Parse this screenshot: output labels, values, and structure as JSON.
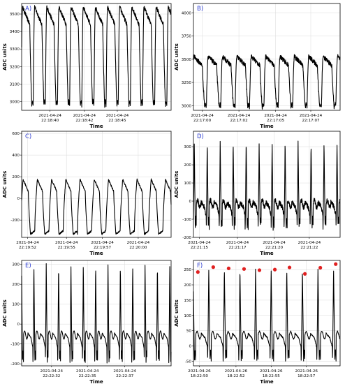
{
  "chart_data": [
    {
      "type": "line",
      "panel_label": "A)",
      "ylabel": "ADC units",
      "xlabel": "Time",
      "ylim": [
        2950,
        3560
      ],
      "yticks": [
        3000,
        3100,
        3200,
        3300,
        3400,
        3500
      ],
      "x_tick_labels": [
        [
          "2021-04-24",
          "22:18:40"
        ],
        [
          "2021-04-24",
          "22:18:42"
        ],
        [
          "2021-04-24",
          "22:18:45"
        ]
      ],
      "x_tick_fractions": [
        0.19,
        0.42,
        0.64
      ],
      "grid": true,
      "waveform": {
        "cycles": 12.3,
        "phase": 0.05,
        "low": 2975,
        "high": 3540,
        "shape": "sawtooth-slow-fall",
        "noise": 12
      },
      "markers": []
    },
    {
      "type": "line",
      "panel_label": "B)",
      "ylabel": "ADC units",
      "xlabel": "Time",
      "ylim": [
        2950,
        4100
      ],
      "yticks": [
        3000,
        3250,
        3500,
        3750,
        4000
      ],
      "x_tick_labels": [
        [
          "2021-04-24",
          "22:17:00"
        ],
        [
          "2021-04-24",
          "22:17:02"
        ],
        [
          "2021-04-24",
          "22:17:05"
        ],
        [
          "2021-04-24",
          "22:17:07"
        ]
      ],
      "x_tick_fractions": [
        0.06,
        0.31,
        0.56,
        0.8
      ],
      "grid": true,
      "waveform": {
        "cycles": 10.2,
        "phase": 0.1,
        "low": 2985,
        "high": 3530,
        "shape": "sawtooth-slow-fall",
        "noise": 25
      },
      "markers": []
    },
    {
      "type": "line",
      "panel_label": "C)",
      "ylabel": "ADC units",
      "xlabel": "Time",
      "ylim": [
        -360,
        620
      ],
      "yticks": [
        -200,
        0,
        200,
        400,
        600
      ],
      "x_tick_labels": [
        [
          "2021-04-24",
          "22:19:52"
        ],
        [
          "2021-04-24",
          "22:19:55"
        ],
        [
          "2021-04-24",
          "22:19:57"
        ],
        [
          "2021-04-24",
          "22:20:00"
        ]
      ],
      "x_tick_fractions": [
        0.04,
        0.3,
        0.54,
        0.78
      ],
      "grid": true,
      "waveform": {
        "cycles": 10.5,
        "phase": 0.08,
        "low": -330,
        "high": 175,
        "shape": "plateau",
        "noise": 8
      },
      "markers": []
    },
    {
      "type": "line",
      "panel_label": "D)",
      "ylabel": "ADC units",
      "xlabel": "Time",
      "ylim": [
        -200,
        385
      ],
      "yticks": [
        -200,
        -100,
        0,
        100,
        200,
        300
      ],
      "x_tick_labels": [
        [
          "2021-04-24",
          "22:21:15"
        ],
        [
          "2021-04-24",
          "22:21:17"
        ],
        [
          "2021-04-24",
          "22:21:20"
        ],
        [
          "2021-04-24",
          "22:21:22"
        ]
      ],
      "x_tick_fractions": [
        0.04,
        0.3,
        0.55,
        0.79
      ],
      "grid": true,
      "waveform": {
        "cycles": 11.3,
        "phase": 0.02,
        "low": -150,
        "high": 330,
        "shape": "spike",
        "noise": 14
      },
      "markers": []
    },
    {
      "type": "line",
      "panel_label": "E)",
      "ylabel": "ADC units",
      "xlabel": "Time",
      "ylim": [
        -210,
        320
      ],
      "yticks": [
        -200,
        -100,
        0,
        100,
        200,
        300
      ],
      "x_tick_labels": [
        [
          "2021-04-24",
          "22:22:32"
        ],
        [
          "2021-04-24",
          "22:22:35"
        ],
        [
          "2021-04-24",
          "22:22:37"
        ]
      ],
      "x_tick_fractions": [
        0.2,
        0.44,
        0.69
      ],
      "grid": true,
      "waveform": {
        "cycles": 12.1,
        "phase": 0.09,
        "low": -195,
        "high": 305,
        "shape": "spike",
        "noise": 2
      },
      "markers": []
    },
    {
      "type": "line",
      "panel_label": "F)",
      "ylabel": "ADC units",
      "xlabel": "Time",
      "ylim": [
        -65,
        280
      ],
      "yticks": [
        -50,
        0,
        50,
        100,
        150,
        200,
        250
      ],
      "x_tick_labels": [
        [
          "2021-04-26",
          "18:22:50"
        ],
        [
          "2021-04-26",
          "18:22:52"
        ],
        [
          "2021-04-26",
          "18:22:55"
        ],
        [
          "2021-04-26",
          "18:22:57"
        ]
      ],
      "x_tick_fractions": [
        0.04,
        0.29,
        0.53,
        0.77
      ],
      "grid": true,
      "waveform": {
        "cycles": 9.4,
        "phase": 0.1,
        "low": -50,
        "high": 255,
        "shape": "spike",
        "noise": 2
      },
      "markers": [
        {
          "x": 0.03,
          "y": 242
        },
        {
          "x": 0.135,
          "y": 258
        },
        {
          "x": 0.24,
          "y": 254
        },
        {
          "x": 0.345,
          "y": 252
        },
        {
          "x": 0.45,
          "y": 248
        },
        {
          "x": 0.555,
          "y": 250
        },
        {
          "x": 0.655,
          "y": 257
        },
        {
          "x": 0.76,
          "y": 236
        },
        {
          "x": 0.865,
          "y": 256
        },
        {
          "x": 0.97,
          "y": 268
        }
      ],
      "marker_color": "#e02020"
    }
  ]
}
